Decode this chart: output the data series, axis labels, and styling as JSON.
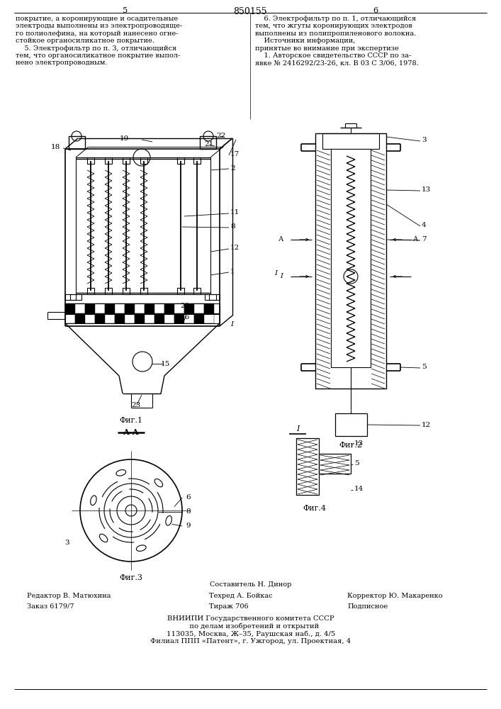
{
  "title": "850155",
  "page_left": "5",
  "page_right": "6",
  "bg_color": "#ffffff",
  "line_color": "#000000",
  "fig_width": 7.07,
  "fig_height": 10.0,
  "text_top_left": "покрытие, а коронирующие и осадительные\nэлектроды выполнены из электропроводяще-\nго полиолефина, на который нанесено огне-\nстойкое органосиликатное покрытие.\n    5. Электрофильтр по п. 3, отличающийся\nтем, что органосиликатное покрытие выпол-\nнено электропроводным.",
  "text_top_right": "    6. Электрофильтр по п. 1, отличающийся\nтем, что жгуты коронирующих электродов\nвыполнены из полипропиленового волокна.\n    Источники информации,\nпринятые во внимание при экспертизе\n    1. Авторское свидетельство СССР по за-\nявке № 2416292/23-26, кл. В 03 С 3/06, 1978.",
  "fig1_label": "Фиг.1",
  "fig2_label": "Фиг.2",
  "fig3_label": "Фиг.3",
  "fig4_label": "Фиг.4",
  "bottom_text_line1": "Составитель Н. Динор",
  "bottom_text_line2_left": "Редактор В. Матюхина",
  "bottom_text_line2_mid": "Техред А. Бойкас",
  "bottom_text_line2_right": "Корректор Ю. Макаренко",
  "bottom_text_line3_left": "Заказ 6179/7",
  "bottom_text_line3_mid": "Тираж 706",
  "bottom_text_line3_right": "Подписное",
  "bottom_text_vniip": "ВНИИПИ Государственного комитета СССР\n   по делам изобретений и открытий\n113035, Москва, Ж–35, Раушская наб., д. 4/5\nФилиал ППП «Патент», г. Ужгород, ул. Проектная, 4"
}
